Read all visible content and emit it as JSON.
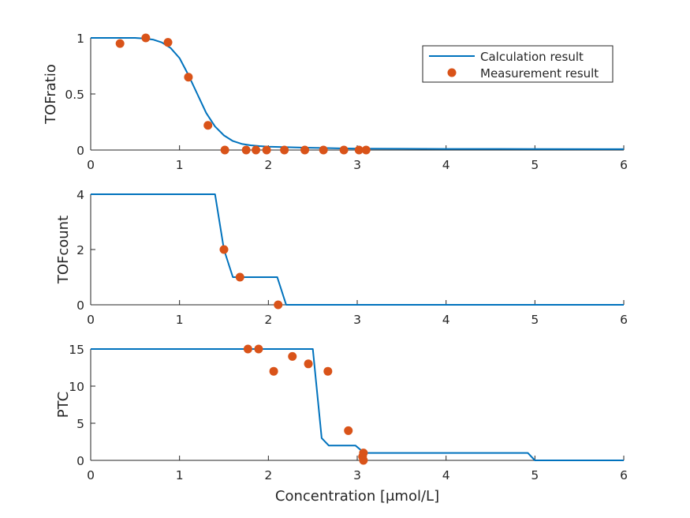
{
  "colors": {
    "line": "#0072BD",
    "marker": "#D95319",
    "axis": "#262626"
  },
  "legend": {
    "placement": "top-right of first subplot",
    "line_label": "Calculation result",
    "marker_label": "Measurement result"
  },
  "chart_data": [
    {
      "type": "line",
      "ylabel": "TOFratio",
      "xlabel": "",
      "xlim": [
        0,
        6
      ],
      "ylim": [
        0,
        1
      ],
      "xticks": [
        "0",
        "1",
        "2",
        "3",
        "4",
        "5",
        "6"
      ],
      "yticks": [
        {
          "value": 0,
          "label": "0"
        },
        {
          "value": 0.5,
          "label": "0.5"
        },
        {
          "value": 1,
          "label": "1"
        }
      ],
      "grid": false,
      "series": [
        {
          "kind": "line",
          "x": [
            0,
            0.1,
            0.2,
            0.3,
            0.4,
            0.5,
            0.6,
            0.7,
            0.8,
            0.9,
            1.0,
            1.1,
            1.2,
            1.3,
            1.4,
            1.5,
            1.6,
            1.7,
            1.8,
            1.9,
            2.0,
            2.2,
            2.4,
            2.6,
            2.8,
            3.0,
            3.5,
            4.0,
            5.0,
            6.0
          ],
          "y": [
            1,
            1,
            1,
            1,
            1,
            1,
            0.995,
            0.985,
            0.96,
            0.91,
            0.82,
            0.67,
            0.5,
            0.33,
            0.21,
            0.13,
            0.08,
            0.055,
            0.042,
            0.035,
            0.03,
            0.025,
            0.021,
            0.018,
            0.015,
            0.013,
            0.011,
            0.01,
            0.009,
            0.008
          ]
        },
        {
          "kind": "scatter",
          "x": [
            0.33,
            0.62,
            0.87,
            1.1,
            1.32,
            1.51,
            1.75,
            1.86,
            1.98,
            2.18,
            2.41,
            2.62,
            2.85,
            3.02,
            3.1
          ],
          "y": [
            0.95,
            1.0,
            0.96,
            0.65,
            0.22,
            0,
            0,
            0,
            0,
            0,
            0,
            0,
            0,
            0,
            0
          ]
        }
      ]
    },
    {
      "type": "line",
      "ylabel": "TOFcount",
      "xlabel": "",
      "xlim": [
        0,
        6
      ],
      "ylim": [
        0,
        4
      ],
      "xticks": [
        "0",
        "1",
        "2",
        "3",
        "4",
        "5",
        "6"
      ],
      "yticks": [
        {
          "value": 0,
          "label": "0"
        },
        {
          "value": 2,
          "label": "2"
        },
        {
          "value": 4,
          "label": "4"
        }
      ],
      "grid": false,
      "series": [
        {
          "kind": "line",
          "x": [
            0,
            1.4,
            1.5,
            1.6,
            2.1,
            2.2,
            6
          ],
          "y": [
            4,
            4,
            2,
            1,
            1,
            0,
            0
          ]
        },
        {
          "kind": "scatter",
          "x": [
            1.5,
            1.68,
            2.11
          ],
          "y": [
            2,
            1,
            0
          ]
        }
      ]
    },
    {
      "type": "line",
      "ylabel": "PTC",
      "xlabel": "Concentration [μmol/L]",
      "xlim": [
        0,
        6
      ],
      "ylim": [
        0,
        15
      ],
      "xticks": [
        "0",
        "1",
        "2",
        "3",
        "4",
        "5",
        "6"
      ],
      "yticks": [
        {
          "value": 0,
          "label": "0"
        },
        {
          "value": 5,
          "label": "5"
        },
        {
          "value": 10,
          "label": "10"
        },
        {
          "value": 15,
          "label": "15"
        }
      ],
      "grid": false,
      "series": [
        {
          "kind": "line",
          "x": [
            0,
            2.5,
            2.6,
            2.68,
            2.98,
            3.08,
            4.92,
            5.0,
            6.0
          ],
          "y": [
            15,
            15,
            3,
            2,
            2,
            1,
            1,
            0,
            0
          ]
        },
        {
          "kind": "scatter",
          "x": [
            1.77,
            1.89,
            2.06,
            2.27,
            2.45,
            2.67,
            2.9,
            3.07,
            3.06,
            3.07
          ],
          "y": [
            15,
            15,
            12,
            14,
            13,
            12,
            4,
            1,
            0.5,
            0
          ]
        }
      ]
    }
  ]
}
